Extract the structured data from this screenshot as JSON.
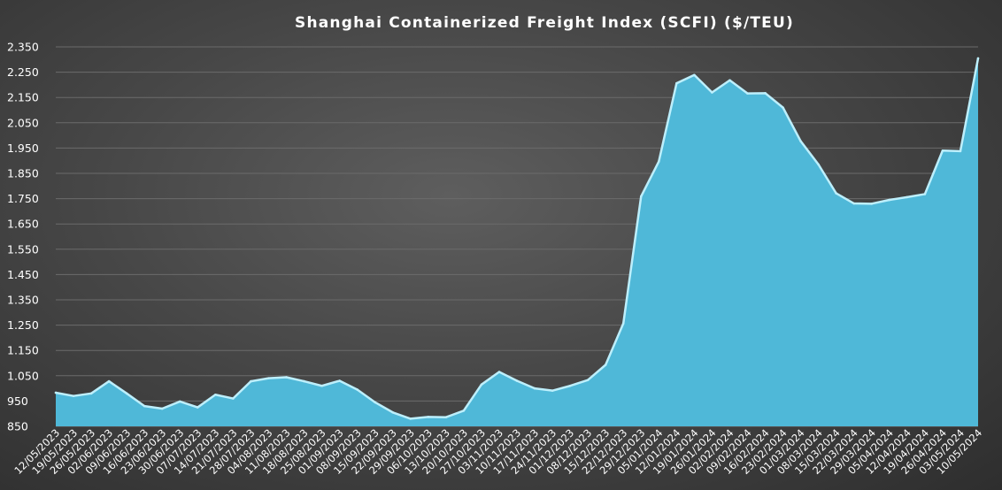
{
  "chart_data": {
    "type": "area",
    "title": "Shanghai Containerized Freight Index (SCFI) ($/TEU)",
    "xlabel": "",
    "ylabel": "",
    "ylim": [
      850,
      2350
    ],
    "yticks": [
      850,
      950,
      1050,
      1150,
      1250,
      1350,
      1450,
      1550,
      1650,
      1750,
      1850,
      1950,
      2050,
      2150,
      2250,
      2350
    ],
    "ytick_labels": [
      "850",
      "950",
      "1.050",
      "1.150",
      "1.250",
      "1.350",
      "1.450",
      "1.550",
      "1.650",
      "1.750",
      "1.850",
      "1.950",
      "2.050",
      "2.150",
      "2.250",
      "2.350"
    ],
    "grid": true,
    "legend": "none",
    "colors": {
      "fill": "#4fb8d8",
      "line": "#bdeffc"
    },
    "x": [
      "12/05/2023",
      "19/05/2023",
      "26/05/2023",
      "02/06/2023",
      "09/06/2023",
      "16/06/2023",
      "23/06/2023",
      "30/06/2023",
      "07/07/2023",
      "14/07/2023",
      "21/07/2023",
      "28/07/2023",
      "04/08/2023",
      "11/08/2023",
      "18/08/2023",
      "25/08/2023",
      "01/09/2023",
      "08/09/2023",
      "15/09/2023",
      "22/09/2023",
      "29/09/2023",
      "06/10/2023",
      "13/10/2023",
      "20/10/2023",
      "27/10/2023",
      "03/11/2023",
      "10/11/2023",
      "17/11/2023",
      "24/11/2023",
      "01/12/2023",
      "08/12/2023",
      "15/12/2023",
      "22/12/2023",
      "29/12/2023",
      "05/01/2024",
      "12/01/2024",
      "19/01/2024",
      "26/01/2024",
      "02/02/2024",
      "09/02/2024",
      "16/02/2024",
      "23/02/2024",
      "01/03/2024",
      "08/03/2024",
      "15/03/2024",
      "22/03/2024",
      "29/03/2024",
      "05/04/2024",
      "12/04/2024",
      "19/04/2024",
      "26/04/2024",
      "03/05/2024",
      "10/05/2024"
    ],
    "series": [
      {
        "values": [
          983,
          970,
          980,
          1028,
          980,
          930,
          920,
          948,
          925,
          975,
          960,
          1028,
          1040,
          1044,
          1028,
          1010,
          1030,
          995,
          945,
          905,
          880,
          887,
          886,
          912,
          1015,
          1065,
          1030,
          1000,
          991,
          1010,
          1033,
          1093,
          1257,
          1759,
          1897,
          2206,
          2239,
          2170,
          2218,
          2166,
          2167,
          2110,
          1977,
          1885,
          1771,
          1731,
          1730,
          1745,
          1756,
          1768,
          1940,
          1938,
          2305
        ]
      }
    ]
  }
}
